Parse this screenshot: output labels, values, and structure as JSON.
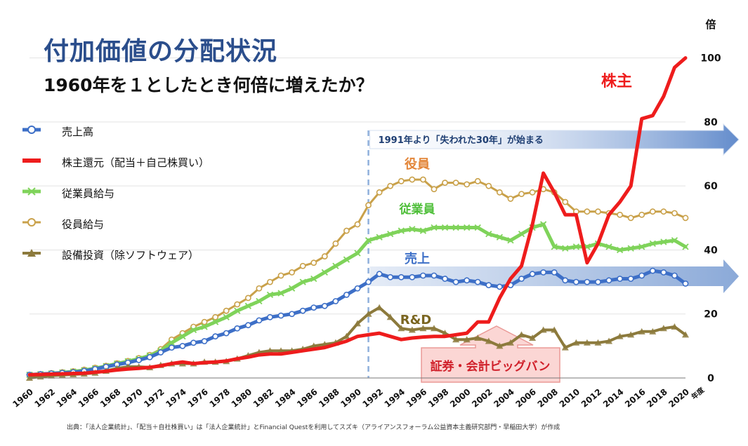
{
  "header": {
    "title": "付加価値の分配状況",
    "subtitle": "1960年を１としたとき何倍に増えたか？"
  },
  "legend": [
    {
      "name": "売上高",
      "color": "#3d6fc7",
      "marker": "circle"
    },
    {
      "name": "株主還元（配当＋自己株買い）",
      "color": "#ee1c1c",
      "marker": "none"
    },
    {
      "name": "従業員給与",
      "color": "#7fd35a",
      "marker": "x"
    },
    {
      "name": "役員給与",
      "color": "#c9a14a",
      "marker": "circle"
    },
    {
      "name": "設備投資（除ソフトウェア）",
      "color": "#8c7a3c",
      "marker": "triangle"
    }
  ],
  "chart_data": {
    "type": "line",
    "x_start": 1960,
    "xlim": [
      1960,
      2020
    ],
    "ylim": [
      0,
      110
    ],
    "y_ticks": [
      0,
      20,
      40,
      60,
      80,
      100
    ],
    "y_unit": "倍",
    "x_unit": "年度",
    "x_tick_labels": [
      "1960",
      "1962",
      "1964",
      "1966",
      "1968",
      "1970",
      "1972",
      "1974",
      "1976",
      "1978",
      "1980",
      "1982",
      "1984",
      "1986",
      "1988",
      "1990",
      "1992",
      "1994",
      "1996",
      "1998",
      "2000",
      "2002",
      "2004",
      "2006",
      "2008",
      "2010",
      "2012",
      "2014",
      "2016",
      "2018",
      "2020"
    ],
    "series": [
      {
        "name": "売上高",
        "color": "#3d6fc7",
        "marker": "circle",
        "values": [
          1,
          1.2,
          1.4,
          1.6,
          1.8,
          2.2,
          2.8,
          3.5,
          4.2,
          4.8,
          5.6,
          6.5,
          8,
          9.5,
          10,
          11,
          11.5,
          13,
          14,
          15.5,
          16.5,
          18,
          19,
          19.5,
          20,
          21,
          22,
          22.5,
          24,
          26,
          28,
          30,
          32.5,
          31.5,
          31.5,
          31.5,
          32,
          32,
          31,
          30,
          30.5,
          30,
          29,
          28.5,
          29,
          31,
          32.5,
          33,
          33,
          30.5,
          30,
          30,
          30,
          30.5,
          31,
          31,
          32,
          33.5,
          33,
          32,
          29.5
        ]
      },
      {
        "name": "株主還元（配当＋自己株買い）",
        "color": "#ee1c1c",
        "marker": "none",
        "values": [
          1,
          1.1,
          1.2,
          1.3,
          1.4,
          1.5,
          1.8,
          2.1,
          2.5,
          2.8,
          3,
          3.3,
          3.8,
          4.5,
          5,
          4.5,
          4.8,
          5,
          5.3,
          6,
          6.5,
          7.2,
          7.5,
          7.5,
          8,
          8.5,
          9,
          9.5,
          10.5,
          11.5,
          13,
          13.5,
          14,
          13,
          12,
          12.5,
          12.8,
          13,
          13,
          13.5,
          14,
          17.5,
          17.5,
          25,
          31,
          35,
          48,
          64,
          58,
          51,
          51,
          36,
          42,
          51,
          55,
          60,
          81,
          82,
          88,
          97,
          100
        ]
      },
      {
        "name": "従業員給与",
        "color": "#7fd35a",
        "marker": "x",
        "values": [
          1,
          1.2,
          1.4,
          1.7,
          2,
          2.4,
          3,
          3.7,
          4.5,
          5.2,
          6,
          7,
          8.5,
          11,
          13,
          15,
          16,
          17.5,
          19,
          21,
          22.5,
          24,
          26,
          26.5,
          28,
          30,
          31,
          33,
          35,
          37,
          39,
          43,
          44,
          45,
          46,
          46.5,
          46,
          47,
          47,
          47,
          47,
          47,
          45,
          44,
          43,
          45,
          47,
          48,
          41,
          40.5,
          41,
          41,
          42,
          41,
          40,
          40.5,
          41,
          42,
          42.5,
          43,
          41
        ]
      },
      {
        "name": "役員給与",
        "color": "#c9a14a",
        "marker": "circle",
        "values": [
          1,
          1.2,
          1.5,
          1.8,
          2.1,
          2.6,
          3.2,
          3.8,
          4.6,
          5.3,
          6.2,
          7.2,
          9,
          12,
          14,
          16,
          17.5,
          19,
          21,
          23,
          25,
          28,
          30,
          32,
          33,
          35,
          36,
          38,
          42,
          46,
          48,
          54,
          58,
          60,
          61.5,
          62,
          62,
          59,
          61,
          61,
          60.5,
          61.5,
          60,
          58,
          56,
          57.5,
          58,
          59,
          58,
          55,
          52,
          52,
          52,
          51.5,
          51,
          50,
          51,
          52,
          52,
          51.5,
          50
        ]
      },
      {
        "name": "設備投資（除ソフトウェア）",
        "color": "#8c7a3c",
        "marker": "triangle",
        "values": [
          0,
          0.4,
          0.7,
          0.9,
          1.1,
          1.3,
          1.6,
          2.2,
          3,
          3.5,
          3.5,
          3.3,
          4,
          4.5,
          4.5,
          4.5,
          5,
          5,
          5.2,
          6,
          7,
          8,
          8.5,
          8.5,
          8.5,
          9,
          10,
          10.5,
          11,
          13,
          17,
          20,
          22,
          19,
          15.5,
          15,
          15.5,
          15.5,
          14,
          12,
          12,
          12.5,
          11.5,
          10,
          11,
          13.5,
          12.5,
          15,
          15,
          9.5,
          11,
          11,
          11,
          11.5,
          13,
          13.5,
          14.5,
          14.5,
          15.5,
          16,
          13.5
        ]
      }
    ],
    "annotations": {
      "sales": "売上",
      "shareholders": "株主",
      "executives": "役員",
      "employees": "従業員",
      "rnd": "R&D",
      "lost_decades": "1991年より「失われた30年」が始まる",
      "big_bang": "証券・会計ビッグバン"
    }
  },
  "footer": {
    "source": "出典：「法人企業統計」、「配当＋自社株買い」は「法人企業統計」とFinancial Questを利用してスズキ（アライアンスフォーラム公益資本主義研究部門・早稲田大学）が作成"
  }
}
